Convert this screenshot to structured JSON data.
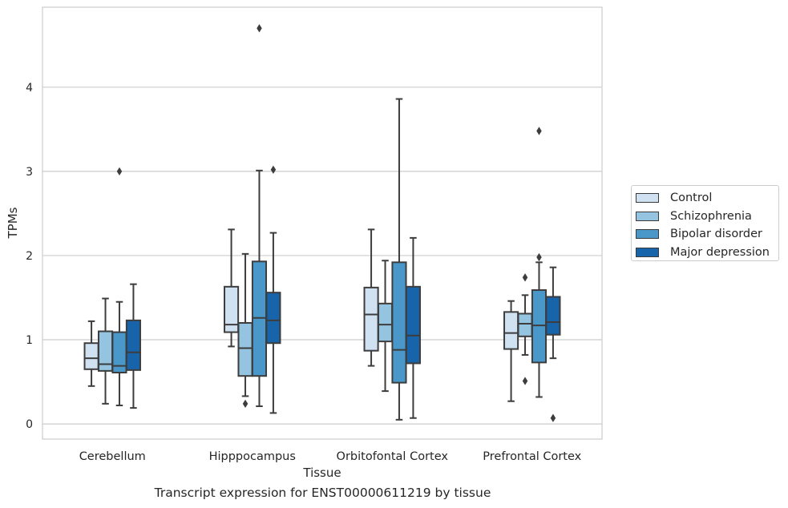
{
  "caption": "Transcript expression for ENST00000611219 by tissue",
  "chart_data": {
    "type": "boxplot",
    "xlabel": "Tissue",
    "ylabel": "TPMs",
    "ylim": [
      -0.18,
      4.95
    ],
    "yticks": [
      0,
      1,
      2,
      3,
      4
    ],
    "grid": "horizontal",
    "legend_position": "right",
    "categories": [
      "Cerebellum",
      "Hipppocampus",
      "Orbitofontal Cortex",
      "Prefrontal Cortex"
    ],
    "series": [
      {
        "name": "Control",
        "color": "#d0e1f2",
        "boxes": [
          {
            "whislo": 0.45,
            "q1": 0.65,
            "med": 0.78,
            "q3": 0.96,
            "whishi": 1.22,
            "fliers": []
          },
          {
            "whislo": 0.92,
            "q1": 1.09,
            "med": 1.18,
            "q3": 1.63,
            "whishi": 2.31,
            "fliers": []
          },
          {
            "whislo": 0.69,
            "q1": 0.87,
            "med": 1.3,
            "q3": 1.62,
            "whishi": 2.31,
            "fliers": []
          },
          {
            "whislo": 0.27,
            "q1": 0.89,
            "med": 1.08,
            "q3": 1.33,
            "whishi": 1.46,
            "fliers": []
          }
        ]
      },
      {
        "name": "Schizophrenia",
        "color": "#94c4df",
        "boxes": [
          {
            "whislo": 0.24,
            "q1": 0.63,
            "med": 0.71,
            "q3": 1.1,
            "whishi": 1.49,
            "fliers": []
          },
          {
            "whislo": 0.33,
            "q1": 0.57,
            "med": 0.9,
            "q3": 1.2,
            "whishi": 2.02,
            "fliers": [
              0.24
            ]
          },
          {
            "whislo": 0.39,
            "q1": 0.98,
            "med": 1.18,
            "q3": 1.43,
            "whishi": 1.94,
            "fliers": []
          },
          {
            "whislo": 0.82,
            "q1": 1.04,
            "med": 1.19,
            "q3": 1.31,
            "whishi": 1.53,
            "fliers": [
              1.74,
              0.51
            ]
          }
        ]
      },
      {
        "name": "Bipolar disorder",
        "color": "#4a98c9",
        "boxes": [
          {
            "whislo": 0.22,
            "q1": 0.61,
            "med": 0.69,
            "q3": 1.09,
            "whishi": 1.45,
            "fliers": [
              3.0
            ]
          },
          {
            "whislo": 0.21,
            "q1": 0.57,
            "med": 1.26,
            "q3": 1.93,
            "whishi": 3.01,
            "fliers": [
              4.7
            ]
          },
          {
            "whislo": 0.05,
            "q1": 0.49,
            "med": 0.88,
            "q3": 1.92,
            "whishi": 3.86,
            "fliers": []
          },
          {
            "whislo": 0.32,
            "q1": 0.73,
            "med": 1.17,
            "q3": 1.59,
            "whishi": 1.92,
            "fliers": [
              1.98,
              3.48
            ]
          }
        ]
      },
      {
        "name": "Major depression",
        "color": "#1764ab",
        "boxes": [
          {
            "whislo": 0.19,
            "q1": 0.64,
            "med": 0.85,
            "q3": 1.23,
            "whishi": 1.66,
            "fliers": []
          },
          {
            "whislo": 0.13,
            "q1": 0.96,
            "med": 1.23,
            "q3": 1.56,
            "whishi": 2.27,
            "fliers": [
              3.02
            ]
          },
          {
            "whislo": 0.07,
            "q1": 0.72,
            "med": 1.05,
            "q3": 1.63,
            "whishi": 2.21,
            "fliers": []
          },
          {
            "whislo": 0.78,
            "q1": 1.06,
            "med": 1.21,
            "q3": 1.51,
            "whishi": 1.86,
            "fliers": [
              0.07
            ]
          }
        ]
      }
    ]
  }
}
